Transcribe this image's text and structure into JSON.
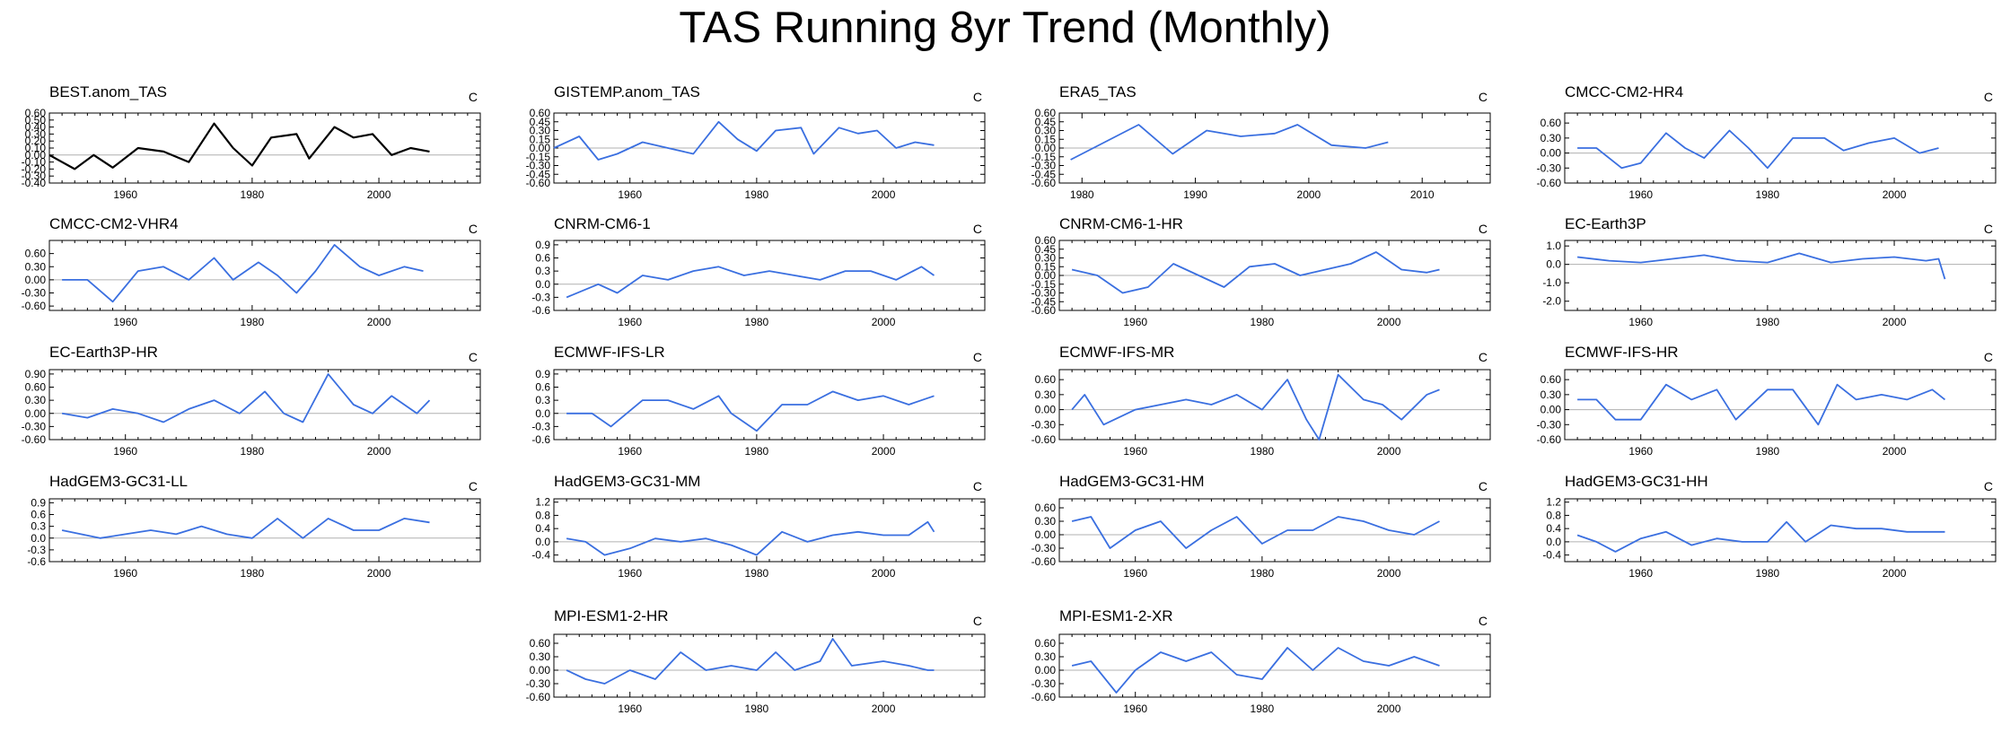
{
  "title": "TAS Running 8yr Trend (Monthly)",
  "colors": {
    "observation": "#000000",
    "model": "#3a6fe0",
    "zero_line": "#b0b0b0",
    "frame": "#000000"
  },
  "chart_data": [
    {
      "type": "line",
      "title": "BEST.anom_TAS",
      "units": "C",
      "xlim": [
        1948,
        2016
      ],
      "ylim": [
        -0.4,
        0.6
      ],
      "yticks": [
        "0.60",
        "0.50",
        "0.40",
        "0.30",
        "0.20",
        "0.10",
        "0.00",
        "-0.10",
        "-0.20",
        "-0.30",
        "-0.40"
      ],
      "xticks": [
        1960,
        1980,
        2000
      ],
      "series": [
        {
          "color": "#000000",
          "x": [
            1948,
            1952,
            1955,
            1958,
            1962,
            1966,
            1970,
            1974,
            1977,
            1980,
            1983,
            1987,
            1989,
            1993,
            1996,
            1999,
            2002,
            2005,
            2008
          ],
          "y": [
            0.0,
            -0.2,
            0.0,
            -0.18,
            0.1,
            0.05,
            -0.1,
            0.45,
            0.1,
            -0.15,
            0.25,
            0.3,
            -0.05,
            0.4,
            0.25,
            0.3,
            0.0,
            0.1,
            0.05
          ]
        }
      ]
    },
    {
      "type": "line",
      "title": "GISTEMP.anom_TAS",
      "units": "C",
      "xlim": [
        1948,
        2016
      ],
      "ylim": [
        -0.6,
        0.6
      ],
      "yticks": [
        "0.60",
        "0.45",
        "0.30",
        "0.15",
        "0.00",
        "-0.15",
        "-0.30",
        "-0.45",
        "-0.60"
      ],
      "xticks": [
        1960,
        1980,
        2000
      ],
      "series": [
        {
          "color": "#3a6fe0",
          "x": [
            1948,
            1952,
            1955,
            1958,
            1962,
            1966,
            1970,
            1974,
            1977,
            1980,
            1983,
            1987,
            1989,
            1993,
            1996,
            1999,
            2002,
            2005,
            2008
          ],
          "y": [
            0.0,
            0.2,
            -0.2,
            -0.1,
            0.1,
            0.0,
            -0.1,
            0.45,
            0.15,
            -0.05,
            0.3,
            0.35,
            -0.1,
            0.35,
            0.25,
            0.3,
            0.0,
            0.1,
            0.05
          ]
        }
      ]
    },
    {
      "type": "line",
      "title": "ERA5_TAS",
      "units": "C",
      "xlim": [
        1978,
        2016
      ],
      "ylim": [
        -0.6,
        0.6
      ],
      "yticks": [
        "0.60",
        "0.45",
        "0.30",
        "0.15",
        "0.00",
        "-0.15",
        "-0.30",
        "-0.45",
        "-0.60"
      ],
      "xticks": [
        1980,
        1990,
        2000,
        2010
      ],
      "series": [
        {
          "color": "#3a6fe0",
          "x": [
            1979,
            1982,
            1985,
            1988,
            1991,
            1994,
            1997,
            1999,
            2002,
            2005,
            2007
          ],
          "y": [
            -0.2,
            0.1,
            0.4,
            -0.1,
            0.3,
            0.2,
            0.25,
            0.4,
            0.05,
            0.0,
            0.1
          ]
        }
      ]
    },
    {
      "type": "line",
      "title": "CMCC-CM2-HR4",
      "units": "C",
      "xlim": [
        1948,
        2016
      ],
      "ylim": [
        -0.6,
        0.8
      ],
      "yticks": [
        "0.60",
        "0.30",
        "0.00",
        "-0.30",
        "-0.60"
      ],
      "xticks": [
        1960,
        1980,
        2000
      ],
      "series": [
        {
          "color": "#3a6fe0",
          "x": [
            1950,
            1953,
            1957,
            1960,
            1964,
            1967,
            1970,
            1974,
            1977,
            1980,
            1984,
            1989,
            1992,
            1996,
            2000,
            2004,
            2007
          ],
          "y": [
            0.1,
            0.1,
            -0.3,
            -0.2,
            0.4,
            0.1,
            -0.1,
            0.45,
            0.1,
            -0.3,
            0.3,
            0.3,
            0.05,
            0.2,
            0.3,
            0.0,
            0.1
          ]
        }
      ]
    },
    {
      "type": "line",
      "title": "CMCC-CM2-VHR4",
      "units": "C",
      "xlim": [
        1948,
        2016
      ],
      "ylim": [
        -0.7,
        0.9
      ],
      "yticks": [
        "0.60",
        "0.30",
        "0.00",
        "-0.30",
        "-0.60"
      ],
      "xticks": [
        1960,
        1980,
        2000
      ],
      "series": [
        {
          "color": "#3a6fe0",
          "x": [
            1950,
            1954,
            1958,
            1962,
            1966,
            1970,
            1974,
            1977,
            1981,
            1984,
            1987,
            1990,
            1993,
            1997,
            2000,
            2004,
            2007
          ],
          "y": [
            0.0,
            0.0,
            -0.5,
            0.2,
            0.3,
            0.0,
            0.5,
            0.0,
            0.4,
            0.1,
            -0.3,
            0.2,
            0.8,
            0.3,
            0.1,
            0.3,
            0.2
          ]
        }
      ]
    },
    {
      "type": "line",
      "title": "CNRM-CM6-1",
      "units": "C",
      "xlim": [
        1948,
        2016
      ],
      "ylim": [
        -0.6,
        1.0
      ],
      "yticks": [
        "0.9",
        "0.6",
        "0.3",
        "0.0",
        "-0.3",
        "-0.6"
      ],
      "xticks": [
        1960,
        1980,
        2000
      ],
      "series": [
        {
          "color": "#3a6fe0",
          "x": [
            1950,
            1955,
            1958,
            1962,
            1966,
            1970,
            1974,
            1978,
            1982,
            1986,
            1990,
            1994,
            1998,
            2002,
            2006,
            2008
          ],
          "y": [
            -0.3,
            0.0,
            -0.2,
            0.2,
            0.1,
            0.3,
            0.4,
            0.2,
            0.3,
            0.2,
            0.1,
            0.3,
            0.3,
            0.1,
            0.4,
            0.2
          ]
        }
      ]
    },
    {
      "type": "line",
      "title": "CNRM-CM6-1-HR",
      "units": "C",
      "xlim": [
        1948,
        2016
      ],
      "ylim": [
        -0.6,
        0.6
      ],
      "yticks": [
        "0.60",
        "0.45",
        "0.30",
        "0.15",
        "0.00",
        "-0.15",
        "-0.30",
        "-0.45",
        "-0.60"
      ],
      "xticks": [
        1960,
        1980,
        2000
      ],
      "series": [
        {
          "color": "#3a6fe0",
          "x": [
            1950,
            1954,
            1958,
            1962,
            1966,
            1970,
            1974,
            1978,
            1982,
            1986,
            1990,
            1994,
            1998,
            2002,
            2006,
            2008
          ],
          "y": [
            0.1,
            0.0,
            -0.3,
            -0.2,
            0.2,
            0.0,
            -0.2,
            0.15,
            0.2,
            0.0,
            0.1,
            0.2,
            0.4,
            0.1,
            0.05,
            0.1
          ]
        }
      ]
    },
    {
      "type": "line",
      "title": "EC-Earth3P",
      "units": "C",
      "xlim": [
        1948,
        2016
      ],
      "ylim": [
        -2.5,
        1.3
      ],
      "yticks": [
        "1.0",
        "0.0",
        "-1.0",
        "-2.0"
      ],
      "xticks": [
        1960,
        1980,
        2000
      ],
      "series": [
        {
          "color": "#3a6fe0",
          "x": [
            1950,
            1955,
            1960,
            1965,
            1970,
            1975,
            1980,
            1985,
            1990,
            1995,
            2000,
            2005,
            2007,
            2008
          ],
          "y": [
            0.4,
            0.2,
            0.1,
            0.3,
            0.5,
            0.2,
            0.1,
            0.6,
            0.1,
            0.3,
            0.4,
            0.2,
            0.3,
            -0.8
          ]
        }
      ]
    },
    {
      "type": "line",
      "title": "EC-Earth3P-HR",
      "units": "C",
      "xlim": [
        1948,
        2016
      ],
      "ylim": [
        -0.6,
        1.0
      ],
      "yticks": [
        "0.90",
        "0.60",
        "0.30",
        "0.00",
        "-0.30",
        "-0.60"
      ],
      "xticks": [
        1960,
        1980,
        2000
      ],
      "series": [
        {
          "color": "#3a6fe0",
          "x": [
            1950,
            1954,
            1958,
            1962,
            1966,
            1970,
            1974,
            1978,
            1982,
            1985,
            1988,
            1992,
            1996,
            1999,
            2002,
            2006,
            2008
          ],
          "y": [
            0.0,
            -0.1,
            0.1,
            0.0,
            -0.2,
            0.1,
            0.3,
            0.0,
            0.5,
            0.0,
            -0.2,
            0.9,
            0.2,
            0.0,
            0.4,
            0.0,
            0.3
          ]
        }
      ]
    },
    {
      "type": "line",
      "title": "ECMWF-IFS-LR",
      "units": "C",
      "xlim": [
        1948,
        2016
      ],
      "ylim": [
        -0.6,
        1.0
      ],
      "yticks": [
        "0.9",
        "0.6",
        "0.3",
        "0.0",
        "-0.3",
        "-0.6"
      ],
      "xticks": [
        1960,
        1980,
        2000
      ],
      "series": [
        {
          "color": "#3a6fe0",
          "x": [
            1950,
            1954,
            1957,
            1962,
            1966,
            1970,
            1974,
            1976,
            1980,
            1984,
            1988,
            1992,
            1996,
            2000,
            2004,
            2008
          ],
          "y": [
            0.0,
            0.0,
            -0.3,
            0.3,
            0.3,
            0.1,
            0.4,
            0.0,
            -0.4,
            0.2,
            0.2,
            0.5,
            0.3,
            0.4,
            0.2,
            0.4
          ]
        }
      ]
    },
    {
      "type": "line",
      "title": "ECMWF-IFS-MR",
      "units": "C",
      "xlim": [
        1948,
        2016
      ],
      "ylim": [
        -0.6,
        0.8
      ],
      "yticks": [
        "0.60",
        "0.30",
        "0.00",
        "-0.30",
        "-0.60"
      ],
      "xticks": [
        1960,
        1980,
        2000
      ],
      "series": [
        {
          "color": "#3a6fe0",
          "x": [
            1950,
            1952,
            1955,
            1960,
            1964,
            1968,
            1972,
            1976,
            1980,
            1984,
            1987,
            1989,
            1992,
            1996,
            1999,
            2002,
            2006,
            2008
          ],
          "y": [
            0.0,
            0.3,
            -0.3,
            0.0,
            0.1,
            0.2,
            0.1,
            0.3,
            0.0,
            0.6,
            -0.2,
            -0.6,
            0.7,
            0.2,
            0.1,
            -0.2,
            0.3,
            0.4
          ]
        }
      ]
    },
    {
      "type": "line",
      "title": "ECMWF-IFS-HR",
      "units": "C",
      "xlim": [
        1948,
        2016
      ],
      "ylim": [
        -0.6,
        0.8
      ],
      "yticks": [
        "0.60",
        "0.30",
        "0.00",
        "-0.30",
        "-0.60"
      ],
      "xticks": [
        1960,
        1980,
        2000
      ],
      "series": [
        {
          "color": "#3a6fe0",
          "x": [
            1950,
            1953,
            1956,
            1960,
            1964,
            1968,
            1972,
            1975,
            1980,
            1984,
            1988,
            1991,
            1994,
            1998,
            2002,
            2006,
            2008
          ],
          "y": [
            0.2,
            0.2,
            -0.2,
            -0.2,
            0.5,
            0.2,
            0.4,
            -0.2,
            0.4,
            0.4,
            -0.3,
            0.5,
            0.2,
            0.3,
            0.2,
            0.4,
            0.2
          ]
        }
      ]
    },
    {
      "type": "line",
      "title": "HadGEM3-GC31-LL",
      "units": "C",
      "xlim": [
        1948,
        2016
      ],
      "ylim": [
        -0.6,
        1.0
      ],
      "yticks": [
        "0.9",
        "0.6",
        "0.3",
        "0.0",
        "-0.3",
        "-0.6"
      ],
      "xticks": [
        1960,
        1980,
        2000
      ],
      "series": [
        {
          "color": "#3a6fe0",
          "x": [
            1950,
            1953,
            1956,
            1960,
            1964,
            1968,
            1972,
            1976,
            1980,
            1984,
            1988,
            1992,
            1996,
            2000,
            2004,
            2008
          ],
          "y": [
            0.2,
            0.1,
            0.0,
            0.1,
            0.2,
            0.1,
            0.3,
            0.1,
            0.0,
            0.5,
            0.0,
            0.5,
            0.2,
            0.2,
            0.5,
            0.4
          ]
        }
      ]
    },
    {
      "type": "line",
      "title": "HadGEM3-GC31-MM",
      "units": "C",
      "xlim": [
        1948,
        2016
      ],
      "ylim": [
        -0.6,
        1.3
      ],
      "yticks": [
        "1.2",
        "0.8",
        "0.4",
        "0.0",
        "-0.4"
      ],
      "xticks": [
        1960,
        1980,
        2000
      ],
      "series": [
        {
          "color": "#3a6fe0",
          "x": [
            1950,
            1953,
            1956,
            1960,
            1964,
            1968,
            1972,
            1976,
            1980,
            1984,
            1988,
            1992,
            1996,
            2000,
            2004,
            2007,
            2008
          ],
          "y": [
            0.1,
            0.0,
            -0.4,
            -0.2,
            0.1,
            0.0,
            0.1,
            -0.1,
            -0.4,
            0.3,
            0.0,
            0.2,
            0.3,
            0.2,
            0.2,
            0.6,
            0.3
          ]
        }
      ]
    },
    {
      "type": "line",
      "title": "HadGEM3-GC31-HM",
      "units": "C",
      "xlim": [
        1948,
        2016
      ],
      "ylim": [
        -0.6,
        0.8
      ],
      "yticks": [
        "0.60",
        "0.30",
        "0.00",
        "-0.30",
        "-0.60"
      ],
      "xticks": [
        1960,
        1980,
        2000
      ],
      "series": [
        {
          "color": "#3a6fe0",
          "x": [
            1950,
            1953,
            1956,
            1960,
            1964,
            1968,
            1972,
            1976,
            1980,
            1984,
            1988,
            1992,
            1996,
            2000,
            2004,
            2008
          ],
          "y": [
            0.3,
            0.4,
            -0.3,
            0.1,
            0.3,
            -0.3,
            0.1,
            0.4,
            -0.2,
            0.1,
            0.1,
            0.4,
            0.3,
            0.1,
            0.0,
            0.3
          ]
        }
      ]
    },
    {
      "type": "line",
      "title": "HadGEM3-GC31-HH",
      "units": "C",
      "xlim": [
        1948,
        2016
      ],
      "ylim": [
        -0.6,
        1.3
      ],
      "yticks": [
        "1.2",
        "0.8",
        "0.4",
        "0.0",
        "-0.4"
      ],
      "xticks": [
        1960,
        1980,
        2000
      ],
      "series": [
        {
          "color": "#3a6fe0",
          "x": [
            1950,
            1953,
            1956,
            1960,
            1964,
            1968,
            1972,
            1976,
            1980,
            1983,
            1986,
            1990,
            1994,
            1998,
            2002,
            2006,
            2008
          ],
          "y": [
            0.2,
            0.0,
            -0.3,
            0.1,
            0.3,
            -0.1,
            0.1,
            0.0,
            0.0,
            0.6,
            0.0,
            0.5,
            0.4,
            0.4,
            0.3,
            0.3,
            0.3
          ]
        }
      ]
    },
    {
      "type": "line",
      "title": "MPI-ESM1-2-HR",
      "units": "C",
      "xlim": [
        1948,
        2016
      ],
      "ylim": [
        -0.6,
        0.8
      ],
      "yticks": [
        "0.60",
        "0.30",
        "0.00",
        "-0.30",
        "-0.60"
      ],
      "xticks": [
        1960,
        1980,
        2000
      ],
      "series": [
        {
          "color": "#3a6fe0",
          "x": [
            1950,
            1953,
            1956,
            1960,
            1964,
            1968,
            1972,
            1976,
            1980,
            1983,
            1986,
            1990,
            1992,
            1995,
            2000,
            2004,
            2007,
            2008
          ],
          "y": [
            0.0,
            -0.2,
            -0.3,
            0.0,
            -0.2,
            0.4,
            0.0,
            0.1,
            0.0,
            0.4,
            0.0,
            0.2,
            0.7,
            0.1,
            0.2,
            0.1,
            0.0,
            0.0
          ]
        }
      ]
    },
    {
      "type": "line",
      "title": "MPI-ESM1-2-XR",
      "units": "C",
      "xlim": [
        1948,
        2016
      ],
      "ylim": [
        -0.6,
        0.8
      ],
      "yticks": [
        "0.60",
        "0.30",
        "0.00",
        "-0.30",
        "-0.60"
      ],
      "xticks": [
        1960,
        1980,
        2000
      ],
      "series": [
        {
          "color": "#3a6fe0",
          "x": [
            1950,
            1953,
            1957,
            1960,
            1964,
            1968,
            1972,
            1976,
            1980,
            1984,
            1988,
            1992,
            1996,
            2000,
            2004,
            2008
          ],
          "y": [
            0.1,
            0.2,
            -0.5,
            0.0,
            0.4,
            0.2,
            0.4,
            -0.1,
            -0.2,
            0.5,
            0.0,
            0.5,
            0.2,
            0.1,
            0.3,
            0.1
          ]
        }
      ]
    }
  ]
}
